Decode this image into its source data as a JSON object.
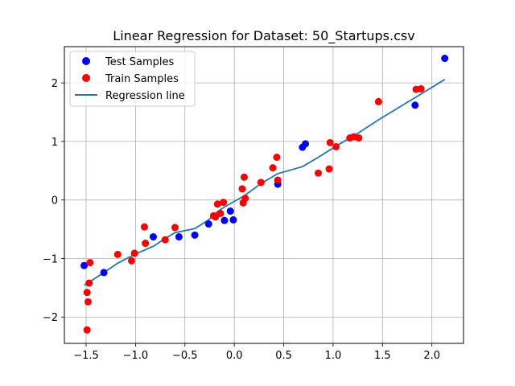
{
  "chart_data": {
    "type": "scatter",
    "title": "Linear Regression for Dataset: 50_Startups.csv",
    "xlabel": "",
    "ylabel": "",
    "xlim": [
      -1.72,
      2.32
    ],
    "ylim": [
      -2.45,
      2.62
    ],
    "xticks": [
      -1.5,
      -1.0,
      -0.5,
      0.0,
      0.5,
      1.0,
      1.5,
      2.0
    ],
    "xtick_labels": [
      "−1.5",
      "−1.0",
      "−0.5",
      "0.0",
      "0.5",
      "1.0",
      "1.5",
      "2.0"
    ],
    "yticks": [
      -2,
      -1,
      0,
      1,
      2
    ],
    "ytick_labels": [
      "−2",
      "−1",
      "0",
      "1",
      "2"
    ],
    "grid": true,
    "legend_position": "top-left",
    "series": [
      {
        "name": "Test Samples",
        "kind": "scatter",
        "color": "#0000ff",
        "points": [
          [
            -1.52,
            -1.12
          ],
          [
            -1.32,
            -1.24
          ],
          [
            -0.82,
            -0.63
          ],
          [
            -0.56,
            -0.63
          ],
          [
            -0.4,
            -0.6
          ],
          [
            -0.26,
            -0.41
          ],
          [
            -0.1,
            -0.35
          ],
          [
            -0.04,
            -0.19
          ],
          [
            -0.01,
            -0.34
          ],
          [
            0.44,
            0.27
          ],
          [
            0.69,
            0.9
          ],
          [
            0.72,
            0.96
          ],
          [
            1.83,
            1.62
          ],
          [
            2.13,
            2.42
          ]
        ]
      },
      {
        "name": "Train Samples",
        "kind": "scatter",
        "color": "#ff0000",
        "points": [
          [
            -1.49,
            -2.22
          ],
          [
            -1.49,
            -1.58
          ],
          [
            -1.48,
            -1.74
          ],
          [
            -1.47,
            -1.42
          ],
          [
            -1.46,
            -1.07
          ],
          [
            -1.18,
            -0.93
          ],
          [
            -1.04,
            -1.04
          ],
          [
            -1.01,
            -0.91
          ],
          [
            -0.91,
            -0.46
          ],
          [
            -0.9,
            -0.74
          ],
          [
            -0.7,
            -0.68
          ],
          [
            -0.6,
            -0.47
          ],
          [
            -0.21,
            -0.27
          ],
          [
            -0.19,
            -0.29
          ],
          [
            -0.17,
            -0.07
          ],
          [
            -0.14,
            -0.23
          ],
          [
            -0.11,
            -0.04
          ],
          [
            0.08,
            0.19
          ],
          [
            0.09,
            -0.05
          ],
          [
            0.1,
            0.39
          ],
          [
            0.11,
            0.03
          ],
          [
            0.27,
            0.3
          ],
          [
            0.39,
            0.55
          ],
          [
            0.43,
            0.73
          ],
          [
            0.44,
            0.34
          ],
          [
            0.85,
            0.46
          ],
          [
            0.96,
            0.53
          ],
          [
            0.97,
            0.98
          ],
          [
            1.03,
            0.91
          ],
          [
            1.17,
            1.06
          ],
          [
            1.21,
            1.08
          ],
          [
            1.26,
            1.06
          ],
          [
            1.46,
            1.68
          ],
          [
            1.84,
            1.89
          ],
          [
            1.89,
            1.9
          ]
        ]
      },
      {
        "name": "Regression line",
        "kind": "line",
        "color": "#1f77b4",
        "points": [
          [
            -1.52,
            -1.46
          ],
          [
            -1.32,
            -1.24
          ],
          [
            -1.18,
            -1.08
          ],
          [
            -1.01,
            -0.93
          ],
          [
            -0.82,
            -0.79
          ],
          [
            -0.7,
            -0.66
          ],
          [
            -0.6,
            -0.56
          ],
          [
            -0.4,
            -0.49
          ],
          [
            -0.26,
            -0.34
          ],
          [
            -0.17,
            -0.2
          ],
          [
            -0.1,
            -0.12
          ],
          [
            -0.04,
            -0.06
          ],
          [
            0.1,
            0.07
          ],
          [
            0.27,
            0.28
          ],
          [
            0.44,
            0.45
          ],
          [
            0.69,
            0.57
          ],
          [
            0.85,
            0.73
          ],
          [
            1.03,
            0.92
          ],
          [
            1.26,
            1.15
          ],
          [
            1.46,
            1.37
          ],
          [
            1.84,
            1.76
          ],
          [
            2.13,
            2.06
          ]
        ]
      }
    ]
  }
}
